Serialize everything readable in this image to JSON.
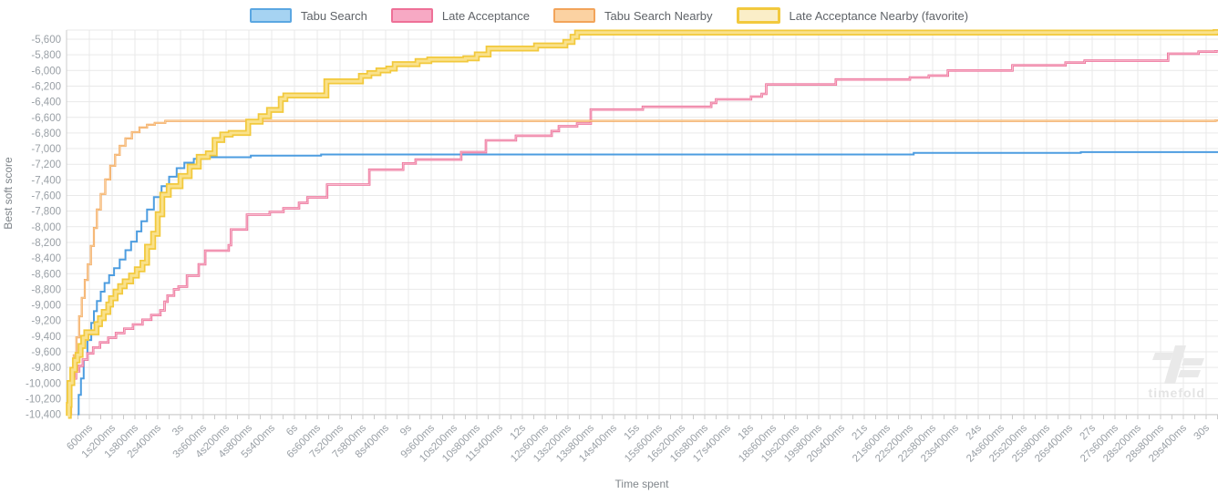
{
  "legend": {
    "items": [
      {
        "label": "Tabu Search",
        "slug": "tabu-search",
        "color": "#5ba7e2",
        "fill": "#a6d3f2",
        "thick": false
      },
      {
        "label": "Late Acceptance",
        "slug": "late-acceptance",
        "color": "#ee7097",
        "fill": "#f7a9c4",
        "thick": false
      },
      {
        "label": "Tabu Search Nearby",
        "slug": "tabu-search-nearby",
        "color": "#f2a45a",
        "fill": "#fbd2a2",
        "thick": false
      },
      {
        "label": "Late Acceptance Nearby (favorite)",
        "slug": "late-acceptance-nearby",
        "color": "#f2c93e",
        "fill": "#faeec8",
        "thick": true
      }
    ]
  },
  "axes": {
    "y_title": "Best soft score",
    "x_title": "Time spent",
    "y_tick_labels": [
      "-5,600",
      "-5,800",
      "-6,000",
      "-6,200",
      "-6,400",
      "-6,600",
      "-6,800",
      "-7,000",
      "-7,200",
      "-7,400",
      "-7,600",
      "-7,800",
      "-8,000",
      "-8,200",
      "-8,400",
      "-8,600",
      "-8,800",
      "-9,000",
      "-9,200",
      "-9,400",
      "-9,600",
      "-9,800",
      "-10,000",
      "-10,200",
      "-10,400"
    ],
    "x_tick_labels": [
      "600ms",
      "1s200ms",
      "1s800ms",
      "2s400ms",
      "3s",
      "3s600ms",
      "4s200ms",
      "4s800ms",
      "5s400ms",
      "6s",
      "6s600ms",
      "7s200ms",
      "7s800ms",
      "8s400ms",
      "9s",
      "9s600ms",
      "10s200ms",
      "10s800ms",
      "11s400ms",
      "12s",
      "12s600ms",
      "13s200ms",
      "13s800ms",
      "14s400ms",
      "15s",
      "15s600ms",
      "16s200ms",
      "16s800ms",
      "17s400ms",
      "18s",
      "18s600ms",
      "19s200ms",
      "19s800ms",
      "20s400ms",
      "21s",
      "21s600ms",
      "22s200ms",
      "22s800ms",
      "23s400ms",
      "24s",
      "24s600ms",
      "25s200ms",
      "25s800ms",
      "26s400ms",
      "27s",
      "27s600ms",
      "28s200ms",
      "28s800ms",
      "29s400ms",
      "30s"
    ]
  },
  "watermark": {
    "text": "timefold"
  },
  "colors": {
    "grid": "#e9e9e9",
    "axis_line": "#cbcbcb",
    "tick_text": "#9aa0a6",
    "legend_text": "#5f6368",
    "axis_title_text": "#80868b",
    "watermark": "#e9e9e9"
  },
  "chart_data": {
    "type": "line",
    "step": "after",
    "title": "",
    "xlabel": "Time spent",
    "ylabel": "Best soft score",
    "x_unit": "seconds",
    "xlim": [
      0,
      30.3
    ],
    "ylim": [
      -10530,
      -5480
    ],
    "y_tick_values": [
      -5600,
      -5800,
      -6000,
      -6200,
      -6400,
      -6600,
      -6800,
      -7000,
      -7200,
      -7400,
      -7600,
      -7800,
      -8000,
      -8200,
      -8400,
      -8600,
      -8800,
      -9000,
      -9200,
      -9400,
      -9600,
      -9800,
      -10000,
      -10200,
      -10400
    ],
    "x_tick_step_seconds": 0.6,
    "x_minor_tick_step_seconds": 0.3,
    "grid": true,
    "legend_position": "top",
    "series": [
      {
        "name": "Tabu Search",
        "slug": "tabu-search",
        "color": "#4d9de0",
        "width": 2,
        "core": null,
        "core_width": 0,
        "points": [
          [
            0.29,
            -10400
          ],
          [
            0.32,
            -10150
          ],
          [
            0.38,
            -9940
          ],
          [
            0.45,
            -9700
          ],
          [
            0.55,
            -9450
          ],
          [
            0.65,
            -9230
          ],
          [
            0.72,
            -9080
          ],
          [
            0.8,
            -8950
          ],
          [
            0.9,
            -8830
          ],
          [
            1.0,
            -8720
          ],
          [
            1.12,
            -8620
          ],
          [
            1.25,
            -8530
          ],
          [
            1.4,
            -8420
          ],
          [
            1.55,
            -8300
          ],
          [
            1.7,
            -8190
          ],
          [
            1.85,
            -8060
          ],
          [
            1.97,
            -7930
          ],
          [
            2.12,
            -7780
          ],
          [
            2.3,
            -7620
          ],
          [
            2.5,
            -7480
          ],
          [
            2.7,
            -7360
          ],
          [
            2.9,
            -7250
          ],
          [
            3.1,
            -7180
          ],
          [
            3.35,
            -7130
          ],
          [
            3.7,
            -7110
          ],
          [
            4.85,
            -7090
          ],
          [
            6.7,
            -7075
          ],
          [
            22.3,
            -7055
          ],
          [
            26.7,
            -7045
          ],
          [
            30.25,
            -7045
          ]
        ]
      },
      {
        "name": "Late Acceptance",
        "slug": "late-acceptance",
        "color": "#ec6d96",
        "width": 2.6,
        "core": "#f8bdd0",
        "core_width": 1,
        "points": [
          [
            0.06,
            -10400
          ],
          [
            0.08,
            -10180
          ],
          [
            0.1,
            -9990
          ],
          [
            0.16,
            -9940
          ],
          [
            0.25,
            -9850
          ],
          [
            0.33,
            -9780
          ],
          [
            0.43,
            -9700
          ],
          [
            0.55,
            -9620
          ],
          [
            0.7,
            -9545
          ],
          [
            0.88,
            -9480
          ],
          [
            1.1,
            -9420
          ],
          [
            1.3,
            -9360
          ],
          [
            1.52,
            -9305
          ],
          [
            1.75,
            -9250
          ],
          [
            2.0,
            -9190
          ],
          [
            2.23,
            -9130
          ],
          [
            2.47,
            -9070
          ],
          [
            2.58,
            -8960
          ],
          [
            2.66,
            -8880
          ],
          [
            2.83,
            -8800
          ],
          [
            2.95,
            -8765
          ],
          [
            3.17,
            -8625
          ],
          [
            3.48,
            -8480
          ],
          [
            3.65,
            -8305
          ],
          [
            4.27,
            -8235
          ],
          [
            4.33,
            -8035
          ],
          [
            4.75,
            -7845
          ],
          [
            5.35,
            -7810
          ],
          [
            5.71,
            -7765
          ],
          [
            6.12,
            -7695
          ],
          [
            6.34,
            -7625
          ],
          [
            6.86,
            -7460
          ],
          [
            7.97,
            -7270
          ],
          [
            8.86,
            -7190
          ],
          [
            9.19,
            -7140
          ],
          [
            10.39,
            -7045
          ],
          [
            11.04,
            -6895
          ],
          [
            11.83,
            -6835
          ],
          [
            12.77,
            -6775
          ],
          [
            12.96,
            -6715
          ],
          [
            13.44,
            -6680
          ],
          [
            13.8,
            -6500
          ],
          [
            15.17,
            -6465
          ],
          [
            16.97,
            -6415
          ],
          [
            17.1,
            -6370
          ],
          [
            18.02,
            -6335
          ],
          [
            18.3,
            -6300
          ],
          [
            18.42,
            -6180
          ],
          [
            20.25,
            -6115
          ],
          [
            22.2,
            -6090
          ],
          [
            22.7,
            -6065
          ],
          [
            23.2,
            -6000
          ],
          [
            24.9,
            -5935
          ],
          [
            26.3,
            -5900
          ],
          [
            26.8,
            -5875
          ],
          [
            29.0,
            -5785
          ],
          [
            29.8,
            -5760
          ],
          [
            30.25,
            -5755
          ]
        ]
      },
      {
        "name": "Tabu Search Nearby",
        "slug": "tabu-search-nearby",
        "color": "#f2a356",
        "width": 2.2,
        "core": "#fad4a4",
        "core_width": 0.9,
        "points": [
          [
            0.1,
            -10400
          ],
          [
            0.12,
            -9960
          ],
          [
            0.19,
            -9645
          ],
          [
            0.26,
            -9415
          ],
          [
            0.33,
            -9145
          ],
          [
            0.4,
            -8910
          ],
          [
            0.48,
            -8680
          ],
          [
            0.56,
            -8480
          ],
          [
            0.64,
            -8245
          ],
          [
            0.72,
            -8015
          ],
          [
            0.8,
            -7780
          ],
          [
            0.9,
            -7580
          ],
          [
            1.02,
            -7395
          ],
          [
            1.15,
            -7220
          ],
          [
            1.28,
            -7080
          ],
          [
            1.4,
            -6965
          ],
          [
            1.55,
            -6870
          ],
          [
            1.72,
            -6790
          ],
          [
            1.92,
            -6730
          ],
          [
            2.12,
            -6695
          ],
          [
            2.32,
            -6670
          ],
          [
            2.6,
            -6645
          ],
          [
            30.25,
            -6640
          ]
        ]
      },
      {
        "name": "Late Acceptance Nearby (favorite)",
        "slug": "late-acceptance-nearby",
        "color": "#f2c93c",
        "width": 6.5,
        "core": "#f9e18c",
        "core_width": 3,
        "points": [
          [
            0.04,
            -10420
          ],
          [
            0.06,
            -10280
          ],
          [
            0.08,
            -10000
          ],
          [
            0.15,
            -9830
          ],
          [
            0.22,
            -9710
          ],
          [
            0.29,
            -9640
          ],
          [
            0.37,
            -9525
          ],
          [
            0.44,
            -9420
          ],
          [
            0.52,
            -9350
          ],
          [
            0.79,
            -9245
          ],
          [
            0.88,
            -9170
          ],
          [
            0.98,
            -9090
          ],
          [
            1.1,
            -8995
          ],
          [
            1.17,
            -8915
          ],
          [
            1.29,
            -8830
          ],
          [
            1.41,
            -8760
          ],
          [
            1.53,
            -8700
          ],
          [
            1.7,
            -8625
          ],
          [
            1.85,
            -8545
          ],
          [
            2.0,
            -8460
          ],
          [
            2.12,
            -8255
          ],
          [
            2.28,
            -8090
          ],
          [
            2.4,
            -7840
          ],
          [
            2.52,
            -7590
          ],
          [
            2.69,
            -7480
          ],
          [
            3.0,
            -7350
          ],
          [
            3.24,
            -7230
          ],
          [
            3.48,
            -7105
          ],
          [
            3.72,
            -7060
          ],
          [
            3.9,
            -6890
          ],
          [
            4.1,
            -6820
          ],
          [
            4.32,
            -6800
          ],
          [
            4.78,
            -6655
          ],
          [
            5.11,
            -6585
          ],
          [
            5.33,
            -6505
          ],
          [
            5.64,
            -6365
          ],
          [
            5.76,
            -6320
          ],
          [
            6.84,
            -6140
          ],
          [
            7.75,
            -6070
          ],
          [
            7.97,
            -6035
          ],
          [
            8.21,
            -6000
          ],
          [
            8.47,
            -5975
          ],
          [
            8.64,
            -5920
          ],
          [
            9.24,
            -5880
          ],
          [
            9.55,
            -5860
          ],
          [
            10.5,
            -5845
          ],
          [
            10.8,
            -5795
          ],
          [
            11.11,
            -5720
          ],
          [
            12.36,
            -5680
          ],
          [
            13.13,
            -5635
          ],
          [
            13.32,
            -5570
          ],
          [
            13.44,
            -5515
          ],
          [
            30.25,
            -5510
          ]
        ]
      }
    ]
  }
}
